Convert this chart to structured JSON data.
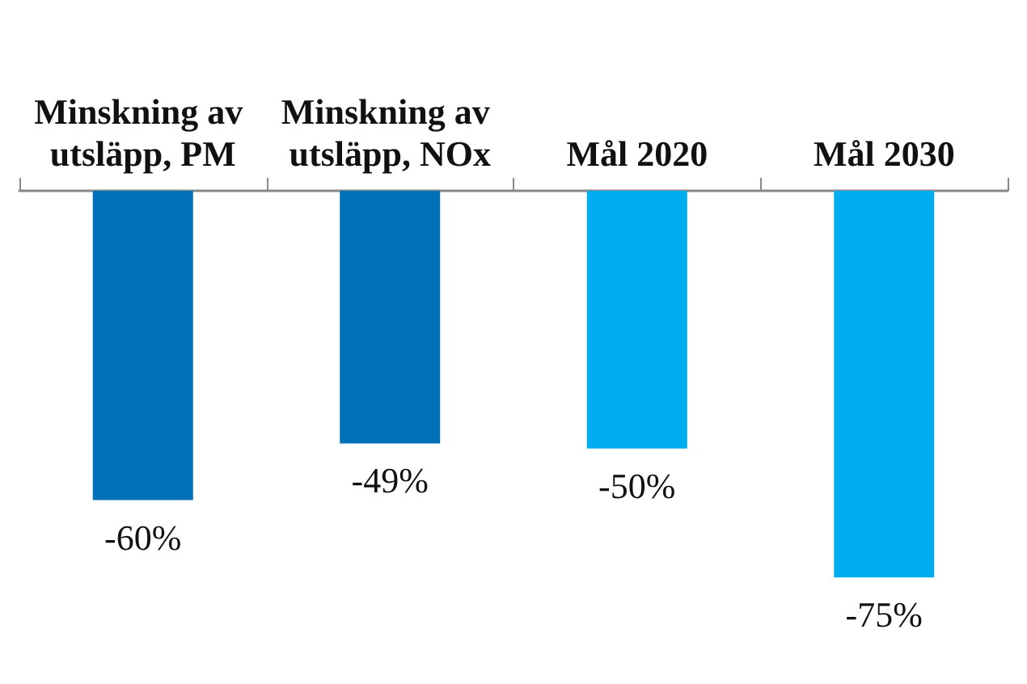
{
  "chart_data": {
    "type": "bar",
    "categories": [
      "Minskning av utsläpp, PM",
      "Minskning av utsläpp, NOx",
      "Mål 2020",
      "Mål 2030"
    ],
    "values": [
      -60,
      -49,
      -50,
      -75
    ],
    "colors": [
      "#0070b8",
      "#0070b8",
      "#00aeef",
      "#00aeef"
    ],
    "value_labels": [
      "-60%",
      "-49%",
      "-50%",
      "-75%"
    ],
    "grid": false,
    "tick_labels": "x"
  }
}
